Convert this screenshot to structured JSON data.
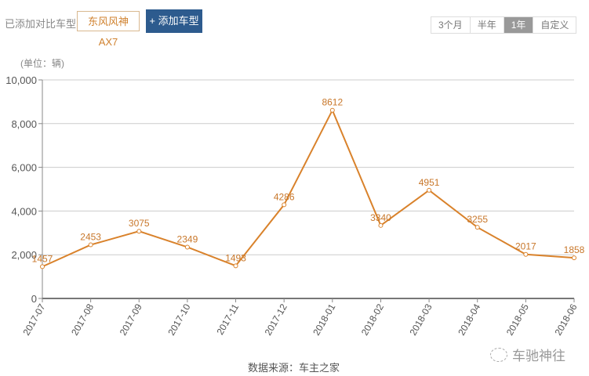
{
  "header": {
    "compare_label": "已添加对比车型:",
    "selected_model": "东风风神AX7",
    "add_button": "+ 添加车型"
  },
  "range": {
    "options": [
      "3个月",
      "半年",
      "1年",
      "自定义"
    ],
    "active_index": 2
  },
  "footer": {
    "source": "数据来源：车主之家",
    "brand": "车驰神往"
  },
  "colors": {
    "line": "#d9822b",
    "grid": "#cccccc",
    "axis": "#888888",
    "button_bg": "#2d5b8e"
  },
  "chart_data": {
    "type": "line",
    "title": "",
    "unit_label": "(单位：辆)",
    "xlabel": "",
    "ylabel": "",
    "categories": [
      "2017-07",
      "2017-08",
      "2017-09",
      "2017-10",
      "2017-11",
      "2017-12",
      "2018-01",
      "2018-02",
      "2018-03",
      "2018-04",
      "2018-05",
      "2018-06"
    ],
    "series": [
      {
        "name": "东风风神AX7",
        "values": [
          1457,
          2453,
          3075,
          2349,
          1493,
          4286,
          8612,
          3340,
          4951,
          3255,
          2017,
          1858
        ]
      }
    ],
    "yticks": [
      "0",
      "2,000",
      "4,000",
      "6,000",
      "8,000",
      "10,000"
    ],
    "ylim": [
      0,
      10000
    ],
    "grid": true,
    "legend": false
  }
}
